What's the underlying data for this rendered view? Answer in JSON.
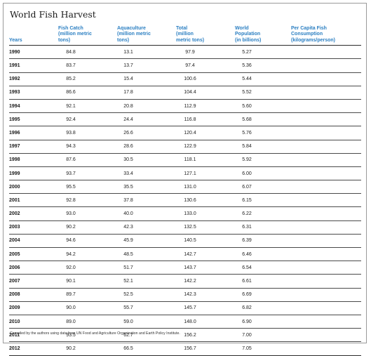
{
  "title": "World Fish Harvest",
  "headers": {
    "years": "Years",
    "fish_catch": [
      "Fish Catch",
      "(million metric",
      "tons)"
    ],
    "aquaculture": [
      "Aquaculture",
      "(million metric",
      "tons)"
    ],
    "total": [
      "Total",
      "(million",
      "metric tons)"
    ],
    "population": [
      "World",
      "Population",
      "(in billions)"
    ],
    "per_capita": [
      "Per Capita Fish",
      "Consumption",
      "(kilograms/person)"
    ]
  },
  "rows": [
    {
      "year": "1990",
      "fish": "84.8",
      "aqua": "13.1",
      "total": "97.9",
      "pop": "5.27",
      "pc": ""
    },
    {
      "year": "1991",
      "fish": "83.7",
      "aqua": "13.7",
      "total": "97.4",
      "pop": "5.36",
      "pc": ""
    },
    {
      "year": "1992",
      "fish": "85.2",
      "aqua": "15.4",
      "total": "100.6",
      "pop": "5.44",
      "pc": ""
    },
    {
      "year": "1993",
      "fish": "86.6",
      "aqua": "17.8",
      "total": "104.4",
      "pop": "5.52",
      "pc": ""
    },
    {
      "year": "1994",
      "fish": "92.1",
      "aqua": "20.8",
      "total": "112.9",
      "pop": "5.60",
      "pc": ""
    },
    {
      "year": "1995",
      "fish": "92.4",
      "aqua": "24.4",
      "total": "116.8",
      "pop": "5.68",
      "pc": ""
    },
    {
      "year": "1996",
      "fish": "93.8",
      "aqua": "26.6",
      "total": "120.4",
      "pop": "5.76",
      "pc": ""
    },
    {
      "year": "1997",
      "fish": "94.3",
      "aqua": "28.6",
      "total": "122.9",
      "pop": "5.84",
      "pc": ""
    },
    {
      "year": "1998",
      "fish": "87.6",
      "aqua": "30.5",
      "total": "118.1",
      "pop": "5.92",
      "pc": ""
    },
    {
      "year": "1999",
      "fish": "93.7",
      "aqua": "33.4",
      "total": "127.1",
      "pop": "6.00",
      "pc": ""
    },
    {
      "year": "2000",
      "fish": "95.5",
      "aqua": "35.5",
      "total": "131.0",
      "pop": "6.07",
      "pc": ""
    },
    {
      "year": "2001",
      "fish": "92.8",
      "aqua": "37.8",
      "total": "130.6",
      "pop": "6.15",
      "pc": ""
    },
    {
      "year": "2002",
      "fish": "93.0",
      "aqua": "40.0",
      "total": "133.0",
      "pop": "6.22",
      "pc": ""
    },
    {
      "year": "2003",
      "fish": "90.2",
      "aqua": "42.3",
      "total": "132.5",
      "pop": "6.31",
      "pc": ""
    },
    {
      "year": "2004",
      "fish": "94.6",
      "aqua": "45.9",
      "total": "140.5",
      "pop": "6.39",
      "pc": ""
    },
    {
      "year": "2005",
      "fish": "94.2",
      "aqua": "48.5",
      "total": "142.7",
      "pop": "6.46",
      "pc": ""
    },
    {
      "year": "2006",
      "fish": "92.0",
      "aqua": "51.7",
      "total": "143.7",
      "pop": "6.54",
      "pc": ""
    },
    {
      "year": "2007",
      "fish": "90.1",
      "aqua": "52.1",
      "total": "142.2",
      "pop": "6.61",
      "pc": ""
    },
    {
      "year": "2008",
      "fish": "89.7",
      "aqua": "52.5",
      "total": "142.3",
      "pop": "6.69",
      "pc": ""
    },
    {
      "year": "2009",
      "fish": "90.0",
      "aqua": "55.7",
      "total": "145.7",
      "pop": "6.82",
      "pc": ""
    },
    {
      "year": "2010",
      "fish": "89.0",
      "aqua": "59.0",
      "total": "148.0",
      "pop": "6.90",
      "pc": ""
    },
    {
      "year": "2011",
      "fish": "93.5",
      "aqua": "62.7",
      "total": "156.2",
      "pop": "7.00",
      "pc": ""
    },
    {
      "year": "2012",
      "fish": "90.2",
      "aqua": "66.5",
      "total": "156.7",
      "pop": "7.05",
      "pc": ""
    }
  ],
  "footnote": "Compiled by the authors using data from UN Food and Agriculture Organization and Earth Policy Institute.",
  "colors": {
    "header_text": "#2b7fc2",
    "rule": "#2a2a2a",
    "frame": "#9a9a9a"
  }
}
